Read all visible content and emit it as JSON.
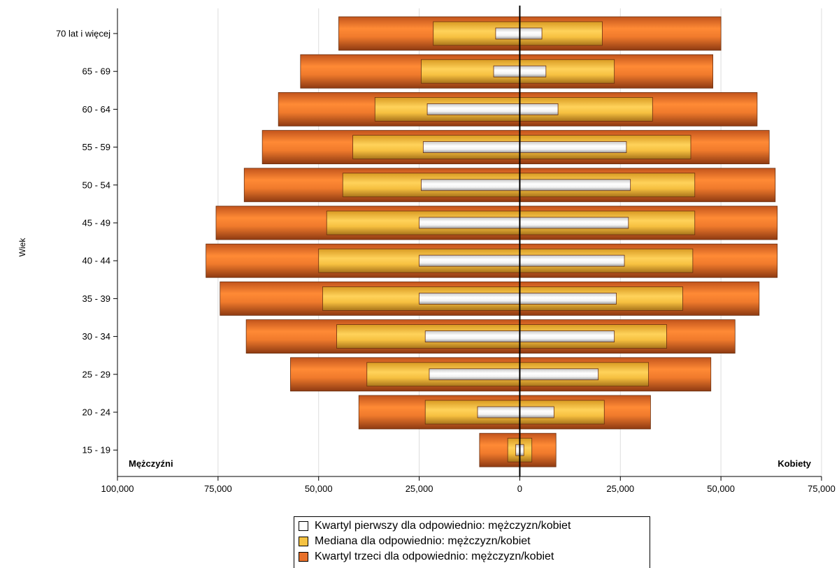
{
  "chart_data": {
    "type": "bar",
    "orientation": "horizontal",
    "layout": "population-pyramid",
    "ylabel": "Wiek",
    "left_label": "Mężczyźni",
    "right_label": "Kobiety",
    "categories": [
      "70 lat i więcej",
      "65 -  69",
      "60 -  64",
      "55 -  59",
      "50 -  54",
      "45 -  49",
      "40 -  44",
      "35 -  39",
      "30 -  34",
      "25 -  29",
      "20 -  24",
      "15 -  19"
    ],
    "xlim": [
      -100000,
      75000
    ],
    "x_ticks": [
      -100000,
      -75000,
      -50000,
      -25000,
      0,
      25000,
      50000,
      75000
    ],
    "x_tick_labels": [
      "100,000",
      "75,000",
      "50,000",
      "25,000",
      "0",
      "25,000",
      "50,000",
      "75,000"
    ],
    "grid": true,
    "legend_position": "bottom",
    "series": [
      {
        "name": "Kwartyl trzeci dla odpowiednio: mężczyzn/kobiet",
        "color": "#e8702a",
        "men": [
          45000,
          54500,
          60000,
          64000,
          68500,
          75500,
          78000,
          74500,
          68000,
          57000,
          40000,
          10000
        ],
        "women": [
          50000,
          48000,
          59000,
          62000,
          63500,
          64000,
          64000,
          59500,
          53500,
          47500,
          32500,
          9000
        ]
      },
      {
        "name": "Mediana dla odpowiednio: mężczyzn/kobiet",
        "color": "#f5c242",
        "men": [
          21500,
          24500,
          36000,
          41500,
          44000,
          48000,
          50000,
          49000,
          45500,
          38000,
          23500,
          3000
        ],
        "women": [
          20500,
          23500,
          33000,
          42500,
          43500,
          43500,
          43000,
          40500,
          36500,
          32000,
          21000,
          3000
        ]
      },
      {
        "name": "Kwartyl pierwszy dla odpowiednio: mężczyzn/kobiet",
        "color": "#ffffff",
        "men": [
          6000,
          6500,
          23000,
          24000,
          24500,
          25000,
          25000,
          25000,
          23500,
          22500,
          10500,
          1000
        ],
        "women": [
          5500,
          6500,
          9500,
          26500,
          27500,
          27000,
          26000,
          24000,
          23500,
          19500,
          8500,
          1000
        ]
      }
    ]
  },
  "legend": {
    "items": [
      {
        "label": "Kwartyl pierwszy dla odpowiednio: mężczyzn/kobiet",
        "color": "#ffffff"
      },
      {
        "label": "Mediana dla odpowiednio: mężczyzn/kobiet",
        "color": "#f5c242"
      },
      {
        "label": "Kwartyl trzeci dla odpowiednio: mężczyzn/kobiet",
        "color": "#e8702a"
      }
    ]
  }
}
